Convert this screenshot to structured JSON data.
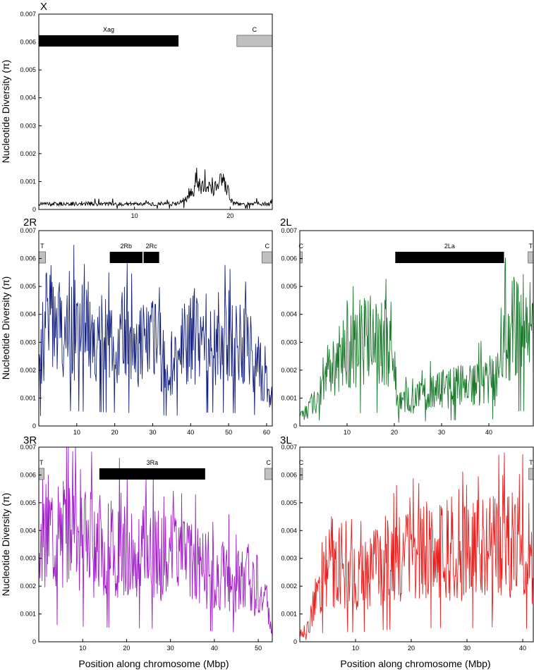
{
  "ylabel": "Nucleotide Diversity (π)",
  "xlabel": "Position along chromosome (Mbp)",
  "chart_data": [
    {
      "type": "line",
      "panel": "X",
      "color": "#000000",
      "xlim": [
        0,
        24.4
      ],
      "ylim": [
        0,
        0.007
      ],
      "xticks": [
        10,
        20
      ],
      "yticks": [
        0,
        0.001,
        0.002,
        0.003,
        0.004,
        0.005,
        0.006,
        0.007
      ],
      "segments": [
        {
          "label": "Xag",
          "start": 0,
          "end": 14.6,
          "fill": "#000000"
        },
        {
          "label": "C",
          "start": 20.7,
          "end": 24.4,
          "fill": "#c0c0c0"
        }
      ],
      "profile": [
        [
          0,
          0.0002
        ],
        [
          5,
          0.0002
        ],
        [
          10,
          0.0002
        ],
        [
          14.5,
          0.0002
        ],
        [
          15.5,
          0.0004
        ],
        [
          16.5,
          0.0008
        ],
        [
          17.5,
          0.0009
        ],
        [
          18.3,
          0.0006
        ],
        [
          19,
          0.0012
        ],
        [
          19.6,
          0.0008
        ],
        [
          20.3,
          0.0002
        ],
        [
          24.4,
          0.0002
        ]
      ]
    },
    {
      "type": "line",
      "panel": "2R",
      "color": "#16237f",
      "xlim": [
        0,
        61.5
      ],
      "ylim": [
        0,
        0.007
      ],
      "xticks": [
        10,
        20,
        30,
        40,
        50,
        60
      ],
      "yticks": [
        0,
        0.001,
        0.002,
        0.003,
        0.004,
        0.005,
        0.006,
        0.007
      ],
      "segments": [
        {
          "label": "T",
          "start": 0,
          "end": 1.8,
          "fill": "#c0c0c0"
        },
        {
          "label": "2Rb",
          "start": 18.7,
          "end": 27.3,
          "fill": "#000000"
        },
        {
          "label": "2Rc",
          "start": 27.6,
          "end": 31.7,
          "fill": "#000000"
        },
        {
          "label": "C",
          "start": 58.8,
          "end": 61.5,
          "fill": "#c0c0c0"
        }
      ],
      "profile": [
        [
          0,
          0.002
        ],
        [
          2,
          0.0038
        ],
        [
          10,
          0.0035
        ],
        [
          20,
          0.0032
        ],
        [
          30,
          0.003
        ],
        [
          35,
          0.0022
        ],
        [
          40,
          0.0032
        ],
        [
          50,
          0.0032
        ],
        [
          57,
          0.0026
        ],
        [
          61.5,
          0.0008
        ]
      ]
    },
    {
      "type": "line",
      "panel": "2L",
      "color": "#1a7a2c",
      "xlim": [
        0,
        49.4
      ],
      "ylim": [
        0,
        0.007
      ],
      "xticks": [
        10,
        20,
        30,
        40
      ],
      "yticks": [
        0,
        0.001,
        0.002,
        0.003,
        0.004,
        0.005,
        0.006,
        0.007
      ],
      "segments": [
        {
          "label": "C",
          "start": 0,
          "end": 0.5,
          "fill": "#c0c0c0"
        },
        {
          "label": "2La",
          "start": 20.2,
          "end": 43.2,
          "fill": "#000000"
        },
        {
          "label": "T",
          "start": 48.3,
          "end": 49.4,
          "fill": "#c0c0c0"
        }
      ],
      "profile": [
        [
          0,
          0.0003
        ],
        [
          3,
          0.0008
        ],
        [
          6,
          0.0022
        ],
        [
          10,
          0.0028
        ],
        [
          15,
          0.0032
        ],
        [
          19.8,
          0.003
        ],
        [
          20.6,
          0.0008
        ],
        [
          30,
          0.0013
        ],
        [
          40,
          0.0016
        ],
        [
          42,
          0.0015
        ],
        [
          43.5,
          0.0032
        ],
        [
          47,
          0.0036
        ],
        [
          49.4,
          0.0032
        ]
      ]
    },
    {
      "type": "line",
      "panel": "3R",
      "color": "#a020c8",
      "xlim": [
        0,
        53.2
      ],
      "ylim": [
        0,
        0.007
      ],
      "xticks": [
        10,
        20,
        30,
        40,
        50
      ],
      "yticks": [
        0,
        0.001,
        0.002,
        0.003,
        0.004,
        0.005,
        0.006,
        0.007
      ],
      "segments": [
        {
          "label": "T",
          "start": 0,
          "end": 1.2,
          "fill": "#c0c0c0"
        },
        {
          "label": "3Ra",
          "start": 13.8,
          "end": 37.9,
          "fill": "#000000"
        },
        {
          "label": "C",
          "start": 51.5,
          "end": 53.2,
          "fill": "#c0c0c0"
        }
      ],
      "profile": [
        [
          0,
          0.0025
        ],
        [
          2,
          0.0042
        ],
        [
          10,
          0.0036
        ],
        [
          20,
          0.0033
        ],
        [
          30,
          0.003
        ],
        [
          40,
          0.0025
        ],
        [
          50,
          0.002
        ],
        [
          53.2,
          0.0005
        ]
      ]
    },
    {
      "type": "line",
      "panel": "3L",
      "color": "#e8211f",
      "xlim": [
        0,
        41.9
      ],
      "ylim": [
        0,
        0.007
      ],
      "xticks": [
        10,
        20,
        30,
        40
      ],
      "yticks": [
        0,
        0.001,
        0.002,
        0.003,
        0.004,
        0.005,
        0.006,
        0.007
      ],
      "segments": [
        {
          "label": "C",
          "start": 0,
          "end": 0.5,
          "fill": "#c0c0c0"
        },
        {
          "label": "T",
          "start": 41.1,
          "end": 41.9,
          "fill": "#c0c0c0"
        }
      ],
      "profile": [
        [
          0,
          0.0003
        ],
        [
          1.5,
          0.0005
        ],
        [
          3,
          0.0018
        ],
        [
          6,
          0.0025
        ],
        [
          10,
          0.0022
        ],
        [
          15,
          0.0028
        ],
        [
          20,
          0.0032
        ],
        [
          25,
          0.0033
        ],
        [
          30,
          0.0032
        ],
        [
          36,
          0.0036
        ],
        [
          40,
          0.0035
        ],
        [
          41.9,
          0.0025
        ]
      ]
    }
  ]
}
